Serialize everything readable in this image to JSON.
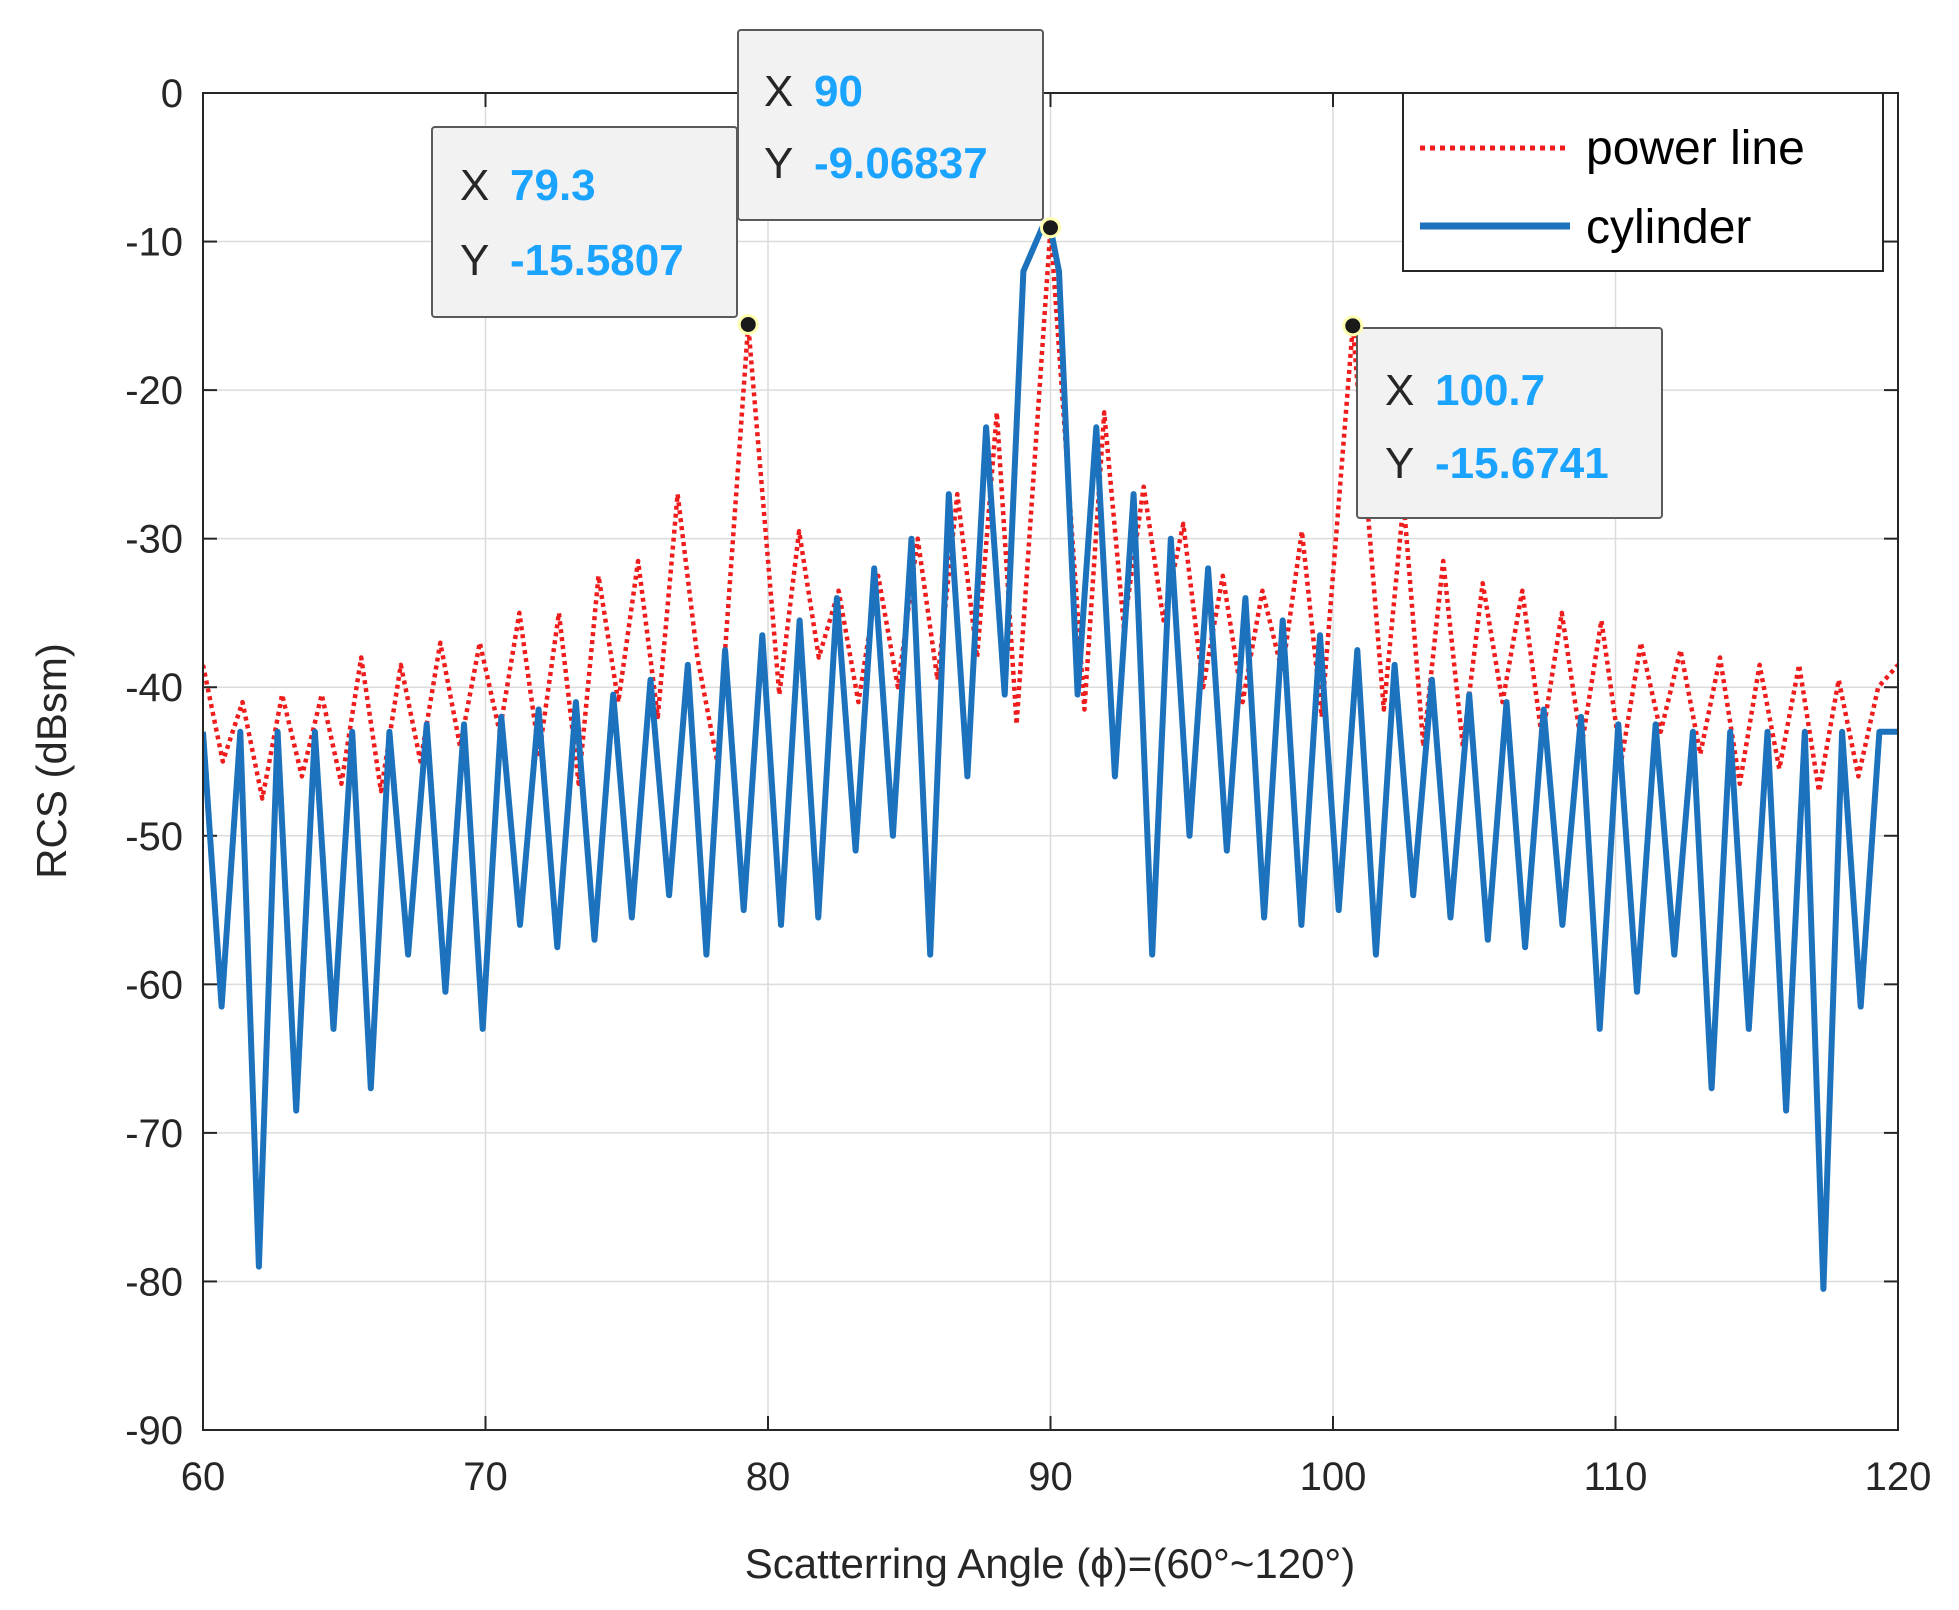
{
  "chart_data": {
    "type": "line",
    "xlabel": "Scatterring Angle (ϕ)=(60°~120°)",
    "ylabel": "RCS (dBsm)",
    "xlim": [
      60,
      120
    ],
    "ylim": [
      -90,
      0
    ],
    "xticks": [
      60,
      70,
      80,
      90,
      100,
      110,
      120
    ],
    "yticks": [
      0,
      -10,
      -20,
      -30,
      -40,
      -50,
      -60,
      -70,
      -80,
      -90
    ],
    "grid": true,
    "legend": {
      "position": "top-right",
      "entries": [
        "power line",
        "cylinder"
      ]
    },
    "colors": {
      "power_line": "#ee1c1c",
      "cylinder": "#1c72bd",
      "tip_value": "#1aa3ff"
    },
    "series": [
      {
        "name": "power line",
        "style": "dotted",
        "x": [
          60.0,
          60.7,
          61.4,
          62.1,
          62.8,
          63.5,
          64.2,
          64.9,
          65.6,
          66.3,
          67.0,
          67.7,
          68.4,
          69.1,
          69.8,
          70.5,
          71.2,
          71.9,
          72.6,
          73.3,
          74.0,
          74.7,
          75.4,
          76.1,
          76.8,
          77.5,
          78.2,
          79.3,
          80.4,
          81.1,
          81.8,
          82.5,
          83.2,
          83.9,
          84.6,
          85.3,
          86.0,
          86.7,
          87.4,
          88.1,
          88.8,
          90.0,
          91.2,
          91.9,
          92.6,
          93.3,
          94.0,
          94.7,
          95.4,
          96.1,
          96.8,
          97.5,
          98.2,
          98.9,
          99.6,
          100.7,
          101.8,
          102.5,
          103.2,
          103.9,
          104.6,
          105.3,
          106.0,
          106.7,
          107.4,
          108.1,
          108.8,
          109.5,
          110.2,
          110.9,
          111.6,
          112.3,
          113.0,
          113.7,
          114.4,
          115.1,
          115.8,
          116.5,
          117.2,
          117.9,
          118.6,
          119.3,
          120.0
        ],
        "values": [
          -38.5,
          -45.0,
          -41.0,
          -47.5,
          -40.5,
          -46.0,
          -40.5,
          -46.5,
          -38.0,
          -47.0,
          -38.5,
          -45.0,
          -37.0,
          -44.0,
          -37.0,
          -43.0,
          -35.0,
          -44.5,
          -35.0,
          -46.5,
          -32.5,
          -41.0,
          -31.5,
          -42.0,
          -27.0,
          -38.0,
          -45.0,
          -15.6,
          -40.5,
          -29.5,
          -38.0,
          -33.5,
          -41.0,
          -32.5,
          -40.0,
          -30.0,
          -39.5,
          -27.0,
          -38.0,
          -21.5,
          -42.5,
          -9.1,
          -41.5,
          -21.5,
          -36.0,
          -26.5,
          -35.5,
          -29.0,
          -40.0,
          -32.5,
          -41.0,
          -33.5,
          -39.0,
          -29.5,
          -42.0,
          -15.7,
          -41.5,
          -27.5,
          -44.0,
          -31.5,
          -44.0,
          -33.0,
          -41.0,
          -33.5,
          -43.5,
          -35.0,
          -44.0,
          -35.5,
          -45.0,
          -37.0,
          -43.0,
          -37.5,
          -44.5,
          -38.0,
          -46.5,
          -38.5,
          -45.5,
          -38.5,
          -47.0,
          -39.5,
          -46.0,
          -40.0,
          -38.5
        ]
      },
      {
        "name": "cylinder",
        "style": "solid",
        "x": [
          60.0,
          60.66,
          61.32,
          61.98,
          62.64,
          63.3,
          63.96,
          64.62,
          65.28,
          65.94,
          66.6,
          67.26,
          67.92,
          68.58,
          69.24,
          69.9,
          70.56,
          71.22,
          71.88,
          72.54,
          73.2,
          73.86,
          74.52,
          75.18,
          75.84,
          76.5,
          77.16,
          77.82,
          78.48,
          79.14,
          79.8,
          80.46,
          81.12,
          81.78,
          82.44,
          83.1,
          83.76,
          84.42,
          85.08,
          85.74,
          86.4,
          87.06,
          87.72,
          88.38,
          89.04,
          89.7,
          90.0,
          90.3,
          90.96,
          91.62,
          92.28,
          92.94,
          93.6,
          94.26,
          94.92,
          95.58,
          96.24,
          96.9,
          97.56,
          98.22,
          98.88,
          99.54,
          100.2,
          100.86,
          101.52,
          102.18,
          102.84,
          103.5,
          104.16,
          104.82,
          105.48,
          106.14,
          106.8,
          107.46,
          108.12,
          108.78,
          109.44,
          110.1,
          110.76,
          111.42,
          112.08,
          112.74,
          113.4,
          114.06,
          114.72,
          115.38,
          116.04,
          116.7,
          117.36,
          118.02,
          118.68,
          119.34,
          120.0
        ],
        "values": [
          -43.0,
          -61.5,
          -43.0,
          -79.0,
          -43.0,
          -68.5,
          -43.0,
          -63.0,
          -43.0,
          -67.0,
          -43.0,
          -58.0,
          -42.5,
          -60.5,
          -42.5,
          -63.0,
          -42.0,
          -56.0,
          -41.5,
          -57.5,
          -41.0,
          -57.0,
          -40.5,
          -55.5,
          -39.5,
          -54.0,
          -38.5,
          -58.0,
          -37.5,
          -55.0,
          -36.5,
          -56.0,
          -35.5,
          -55.5,
          -34.0,
          -51.0,
          -32.0,
          -50.0,
          -30.0,
          -58.0,
          -27.0,
          -46.0,
          -22.5,
          -40.5,
          -12.0,
          -9.1,
          -9.1,
          -12.0,
          -40.5,
          -22.5,
          -46.0,
          -27.0,
          -58.0,
          -30.0,
          -50.0,
          -32.0,
          -51.0,
          -34.0,
          -55.5,
          -35.5,
          -56.0,
          -36.5,
          -55.0,
          -37.5,
          -58.0,
          -38.5,
          -54.0,
          -39.5,
          -55.5,
          -40.5,
          -57.0,
          -41.0,
          -57.5,
          -41.5,
          -56.0,
          -42.0,
          -63.0,
          -42.5,
          -60.5,
          -42.5,
          -58.0,
          -43.0,
          -67.0,
          -43.0,
          -63.0,
          -43.0,
          -68.5,
          -43.0,
          -80.5,
          -43.0,
          -61.5,
          -43.0,
          -43.0
        ]
      }
    ],
    "datatips": [
      {
        "x_key": "X",
        "y_key": "Y",
        "x": "79.3",
        "y": "-15.5807",
        "px": 79.3,
        "py": -15.5807
      },
      {
        "x_key": "X",
        "y_key": "Y",
        "x": "90",
        "y": "-9.06837",
        "px": 90,
        "py": -9.06837
      },
      {
        "x_key": "X",
        "y_key": "Y",
        "x": "100.7",
        "y": "-15.6741",
        "px": 100.7,
        "py": -15.6741
      }
    ]
  }
}
